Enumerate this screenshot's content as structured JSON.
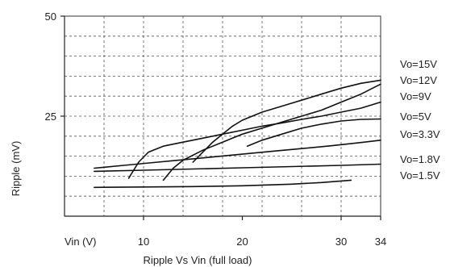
{
  "chart_data": {
    "type": "line",
    "title": "Ripple Vs Vin (full load)",
    "xlabel": "Vin (V)",
    "ylabel": "Ripple (mV)",
    "xlim": [
      2,
      34
    ],
    "ylim": [
      0,
      50
    ],
    "xticks": [
      10,
      20,
      30,
      34
    ],
    "yticks": [
      25,
      50
    ],
    "grid": true,
    "legend_placement": "right, labels beside curve ends",
    "series": [
      {
        "name": "Vo=15V",
        "x": [
          15,
          16,
          17,
          18,
          19,
          20,
          22,
          24,
          26,
          28,
          30,
          32,
          34
        ],
        "y": [
          13.5,
          16,
          18.5,
          20.5,
          22.5,
          24,
          26,
          27.5,
          29,
          30.5,
          32,
          33.2,
          34
        ]
      },
      {
        "name": "Vo=12V",
        "x": [
          12,
          13,
          14,
          16,
          18,
          20,
          22,
          24,
          26,
          28,
          30,
          32,
          34
        ],
        "y": [
          9,
          12,
          14,
          16.5,
          18.5,
          20.5,
          22,
          23.5,
          25,
          26.5,
          28.5,
          30.5,
          33
        ]
      },
      {
        "name": "Vo=9V",
        "x": [
          8.5,
          9.5,
          10.5,
          12,
          14,
          16,
          18,
          20,
          22,
          24,
          26,
          28,
          30,
          32,
          34
        ],
        "y": [
          9.5,
          13.5,
          16,
          17.5,
          18.5,
          19.5,
          20.5,
          21.5,
          22.5,
          23.3,
          24.2,
          25,
          26,
          27,
          28.5
        ]
      },
      {
        "name": "Vo=5V",
        "x": [
          20.5,
          22,
          24,
          26,
          28,
          30,
          32,
          34
        ],
        "y": [
          17.5,
          19,
          20.5,
          22,
          23,
          23.8,
          24.2,
          24.3
        ]
      },
      {
        "name": "Vo=3.3V",
        "x": [
          5,
          8,
          11,
          14,
          17,
          20,
          23,
          26,
          29,
          32,
          34
        ],
        "y": [
          12,
          12.7,
          13.4,
          14.1,
          14.8,
          15.5,
          16.2,
          16.9,
          17.6,
          18.4,
          19
        ]
      },
      {
        "name": "Vo=1.8V",
        "x": [
          5,
          10,
          15,
          20,
          25,
          30,
          34
        ],
        "y": [
          11.2,
          11.5,
          11.8,
          12.1,
          12.4,
          12.7,
          13
        ]
      },
      {
        "name": "Vo=1.5V",
        "x": [
          5,
          10,
          15,
          20,
          25,
          28,
          31
        ],
        "y": [
          7.2,
          7.3,
          7.4,
          7.6,
          8,
          8.4,
          9
        ]
      }
    ]
  }
}
